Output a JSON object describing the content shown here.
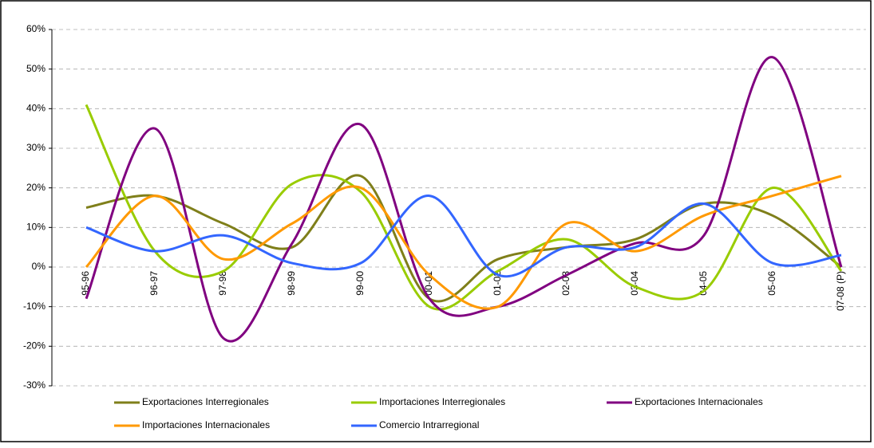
{
  "chart_data": {
    "type": "line",
    "categories": [
      "95-96",
      "96-97",
      "97-98",
      "98-99",
      "99-00",
      "00-01",
      "01-02",
      "02-03",
      "03-04",
      "04-05",
      "05-06",
      "07-08 (P)"
    ],
    "series": [
      {
        "name": "Exportaciones Interregionales",
        "color": "#7f7f1a",
        "values": [
          15,
          18,
          11,
          5,
          23,
          -8,
          2,
          5,
          7,
          16,
          13,
          0
        ]
      },
      {
        "name": "Importaciones Interregionales",
        "color": "#99cc00",
        "values": [
          41,
          4,
          -1,
          21,
          19,
          -10,
          -1,
          7,
          -5,
          -6,
          20,
          -1
        ]
      },
      {
        "name": "Exportaciones Internacionales",
        "color": "#800080",
        "values": [
          -8,
          35,
          -18,
          6,
          36,
          -8,
          -10,
          -2,
          6,
          8,
          53,
          0
        ]
      },
      {
        "name": "Importaciones Internacionales",
        "color": "#ff9900",
        "values": [
          0,
          18,
          2,
          11,
          20,
          -2,
          -10,
          11,
          4,
          13,
          18,
          23
        ]
      },
      {
        "name": "Comercio Intrarregional",
        "color": "#3366ff",
        "values": [
          10,
          4,
          8,
          1,
          1,
          18,
          -2,
          5,
          5,
          16,
          1,
          3
        ]
      }
    ],
    "ylim": [
      -30,
      60
    ],
    "yticks": [
      {
        "value": -30,
        "label": "-30%"
      },
      {
        "value": -20,
        "label": "-20%"
      },
      {
        "value": -10,
        "label": "-10%"
      },
      {
        "value": 0,
        "label": "0%"
      },
      {
        "value": 10,
        "label": "10%"
      },
      {
        "value": 20,
        "label": "20%"
      },
      {
        "value": 30,
        "label": "30%"
      },
      {
        "value": 40,
        "label": "40%"
      },
      {
        "value": 50,
        "label": "50%"
      },
      {
        "value": 60,
        "label": "60%"
      }
    ],
    "grid": true,
    "smooth": true,
    "legend": "bottom"
  }
}
